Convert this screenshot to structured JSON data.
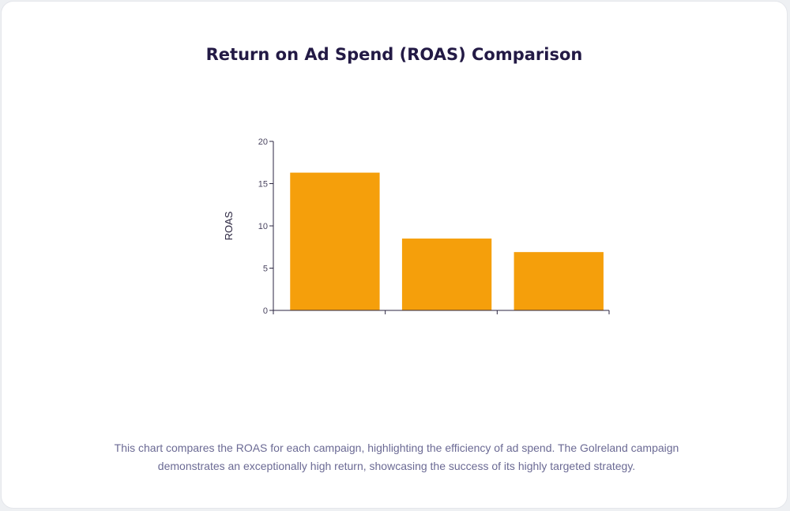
{
  "chart_data": {
    "type": "bar",
    "title": "Return on Ad Spend (ROAS) Comparison",
    "xlabel": "",
    "ylabel": "ROAS",
    "categories": [
      "",
      "",
      ""
    ],
    "values": [
      16.3,
      8.5,
      6.9
    ],
    "ylim": [
      0,
      20
    ],
    "yticks": [
      0,
      5,
      10,
      15,
      20
    ],
    "bar_color": "#f59f0b",
    "grid": false,
    "legend": "none"
  },
  "caption": "This chart compares the ROAS for each campaign, highlighting the efficiency of ad spend. The Golreland campaign demonstrates an exceptionally high return, showcasing the success of its highly targeted strategy."
}
